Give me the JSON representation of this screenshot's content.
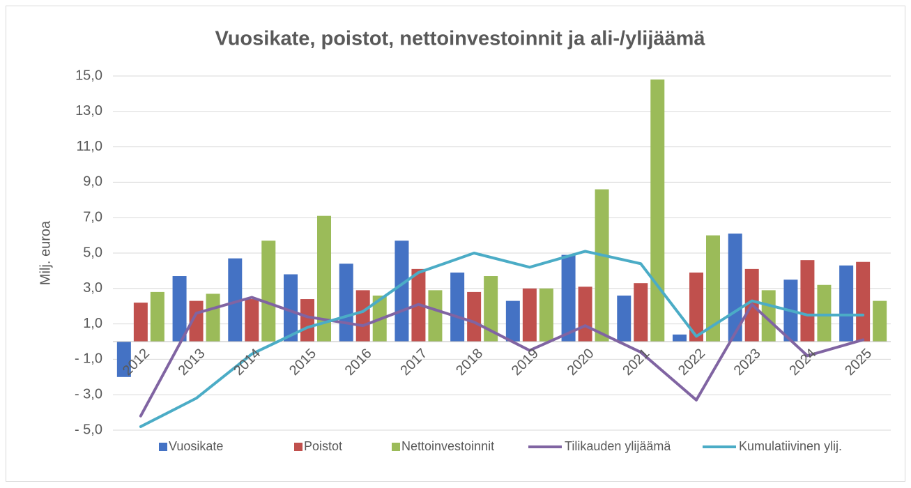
{
  "chart_data": {
    "type": "bar",
    "title": "Vuosikate, poistot, nettoinvestoinnit ja ali-/ylijäämä",
    "y_label": "Milj. euroa",
    "categories": [
      "2012",
      "2013",
      "2014",
      "2015",
      "2016",
      "2017",
      "2018",
      "2019",
      "2020",
      "2021",
      "2022",
      "2023",
      "2024",
      "2025"
    ],
    "series": [
      {
        "name": "Vuosikate",
        "type": "bar",
        "color": "#4472c4",
        "values": [
          -2.0,
          3.7,
          4.7,
          3.8,
          4.4,
          5.7,
          3.9,
          2.3,
          4.9,
          2.6,
          0.4,
          6.1,
          3.5,
          4.3
        ]
      },
      {
        "name": "Poistot",
        "type": "bar",
        "color": "#c0504d",
        "values": [
          2.2,
          2.3,
          2.4,
          2.4,
          2.9,
          4.1,
          2.8,
          3.0,
          3.1,
          3.3,
          3.9,
          4.1,
          4.6,
          4.5
        ]
      },
      {
        "name": "Nettoinvestoinnit",
        "type": "bar",
        "color": "#9bbb59",
        "values": [
          2.8,
          2.7,
          5.7,
          7.1,
          2.6,
          2.9,
          3.7,
          3.0,
          8.6,
          14.8,
          6.0,
          2.9,
          3.2,
          2.3
        ]
      },
      {
        "name": "Tilikauden ylijäämä",
        "type": "line",
        "color": "#8064a2",
        "values": [
          -4.2,
          1.6,
          2.5,
          1.4,
          0.9,
          2.1,
          1.1,
          -0.5,
          0.9,
          -0.6,
          -3.3,
          2.1,
          -0.8,
          0.1
        ]
      },
      {
        "name": "Kumulatiivinen ylij.",
        "type": "line",
        "color": "#4bacc6",
        "values": [
          -4.8,
          -3.2,
          -0.7,
          0.8,
          1.7,
          3.9,
          5.0,
          4.2,
          5.1,
          4.4,
          0.3,
          2.3,
          1.5,
          1.5
        ]
      }
    ],
    "ylim": [
      -5,
      15
    ],
    "yticks": [
      {
        "value": -5,
        "label": "- 5,0"
      },
      {
        "value": -3,
        "label": "- 3,0"
      },
      {
        "value": -1,
        "label": "- 1,0"
      },
      {
        "value": 1,
        "label": "1,0"
      },
      {
        "value": 3,
        "label": "3,0"
      },
      {
        "value": 5,
        "label": "5,0"
      },
      {
        "value": 7,
        "label": "7,0"
      },
      {
        "value": 9,
        "label": "9,0"
      },
      {
        "value": 11,
        "label": "11,0"
      },
      {
        "value": 13,
        "label": "13,0"
      },
      {
        "value": 15,
        "label": "15,0"
      }
    ],
    "grid": true,
    "legend": "bottom"
  }
}
